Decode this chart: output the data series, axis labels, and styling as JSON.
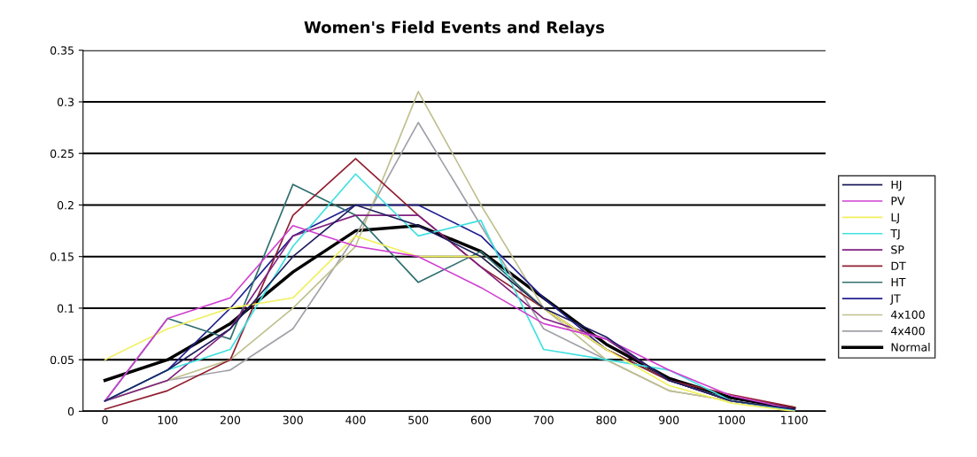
{
  "chart_data": {
    "type": "line",
    "title": "Women's Field Events and Relays",
    "categories": [
      "0",
      "100",
      "200",
      "300",
      "400",
      "500",
      "600",
      "700",
      "800",
      "900",
      "1000",
      "1100"
    ],
    "series": [
      {
        "name": "HJ",
        "color": "#1f1f5f",
        "values": [
          0.01,
          0.04,
          0.08,
          0.15,
          0.2,
          0.18,
          0.15,
          0.1,
          0.072,
          0.03,
          0.01,
          0.002
        ]
      },
      {
        "name": "PV",
        "color": "#d040d0",
        "values": [
          0.01,
          0.09,
          0.11,
          0.18,
          0.16,
          0.15,
          0.12,
          0.085,
          0.07,
          0.04,
          0.015,
          0.002
        ]
      },
      {
        "name": "LJ",
        "color": "#f0f060",
        "values": [
          0.05,
          0.08,
          0.1,
          0.11,
          0.17,
          0.15,
          0.15,
          0.1,
          0.06,
          0.025,
          0.008,
          0.0
        ]
      },
      {
        "name": "TJ",
        "color": "#40e0e0",
        "values": [
          0.01,
          0.04,
          0.06,
          0.16,
          0.23,
          0.17,
          0.185,
          0.06,
          0.05,
          0.04,
          0.01,
          0.001
        ]
      },
      {
        "name": "SP",
        "color": "#802080",
        "values": [
          0.01,
          0.03,
          0.08,
          0.17,
          0.19,
          0.19,
          0.14,
          0.09,
          0.07,
          0.03,
          0.01,
          0.001
        ]
      },
      {
        "name": "DT",
        "color": "#902030",
        "values": [
          0.002,
          0.02,
          0.05,
          0.19,
          0.245,
          0.19,
          0.14,
          0.1,
          0.06,
          0.03,
          0.016,
          0.004
        ]
      },
      {
        "name": "HT",
        "color": "#306f6f",
        "values": [
          0.01,
          0.09,
          0.07,
          0.22,
          0.19,
          0.125,
          0.155,
          0.1,
          0.06,
          0.03,
          0.01,
          0.001
        ]
      },
      {
        "name": "JT",
        "color": "#202090",
        "values": [
          0.01,
          0.04,
          0.1,
          0.17,
          0.2,
          0.2,
          0.17,
          0.11,
          0.06,
          0.03,
          0.01,
          0.001
        ]
      },
      {
        "name": "4x100",
        "color": "#c0c090",
        "values": [
          0.01,
          0.03,
          0.05,
          0.1,
          0.16,
          0.31,
          0.2,
          0.1,
          0.05,
          0.02,
          0.01,
          0.001
        ]
      },
      {
        "name": "4x400",
        "color": "#a0a0a8",
        "values": [
          0.01,
          0.03,
          0.04,
          0.08,
          0.17,
          0.28,
          0.18,
          0.08,
          0.05,
          0.02,
          0.01,
          0.001
        ]
      },
      {
        "name": "Normal",
        "color": "#000000",
        "values": [
          0.03,
          0.05,
          0.085,
          0.135,
          0.175,
          0.18,
          0.155,
          0.11,
          0.065,
          0.032,
          0.013,
          0.003
        ]
      }
    ],
    "ylim": [
      0,
      0.35
    ],
    "yticks": [
      0,
      0.05,
      0.1,
      0.15,
      0.2,
      0.25,
      0.3,
      0.35
    ],
    "grid": "y",
    "legend": "right"
  }
}
